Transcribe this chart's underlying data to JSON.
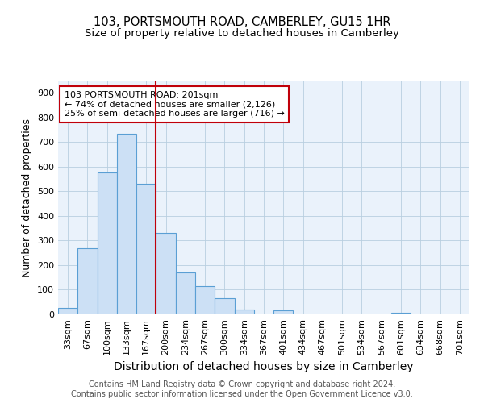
{
  "title": "103, PORTSMOUTH ROAD, CAMBERLEY, GU15 1HR",
  "subtitle": "Size of property relative to detached houses in Camberley",
  "xlabel": "Distribution of detached houses by size in Camberley",
  "ylabel": "Number of detached properties",
  "categories": [
    "33sqm",
    "67sqm",
    "100sqm",
    "133sqm",
    "167sqm",
    "200sqm",
    "234sqm",
    "267sqm",
    "300sqm",
    "334sqm",
    "367sqm",
    "401sqm",
    "434sqm",
    "467sqm",
    "501sqm",
    "534sqm",
    "567sqm",
    "601sqm",
    "634sqm",
    "668sqm",
    "701sqm"
  ],
  "values": [
    25,
    270,
    575,
    735,
    530,
    330,
    170,
    115,
    65,
    20,
    0,
    18,
    0,
    0,
    0,
    0,
    0,
    7,
    0,
    0,
    0
  ],
  "bar_color": "#cce0f5",
  "bar_edgecolor": "#5a9fd4",
  "bar_linewidth": 0.8,
  "vline_color": "#c0000a",
  "vline_linewidth": 1.5,
  "annotation_text": "103 PORTSMOUTH ROAD: 201sqm\n← 74% of detached houses are smaller (2,126)\n25% of semi-detached houses are larger (716) →",
  "annotation_box_color": "#c0000a",
  "footer_text": "Contains HM Land Registry data © Crown copyright and database right 2024.\nContains public sector information licensed under the Open Government Licence v3.0.",
  "ylim": [
    0,
    950
  ],
  "yticks": [
    0,
    100,
    200,
    300,
    400,
    500,
    600,
    700,
    800,
    900
  ],
  "background_color": "#ffffff",
  "plot_bg_color": "#eaf2fb",
  "grid_color": "#b8cfe0",
  "title_fontsize": 10.5,
  "subtitle_fontsize": 9.5,
  "xlabel_fontsize": 10,
  "ylabel_fontsize": 9,
  "tick_fontsize": 8,
  "annotation_fontsize": 8,
  "footer_fontsize": 7
}
